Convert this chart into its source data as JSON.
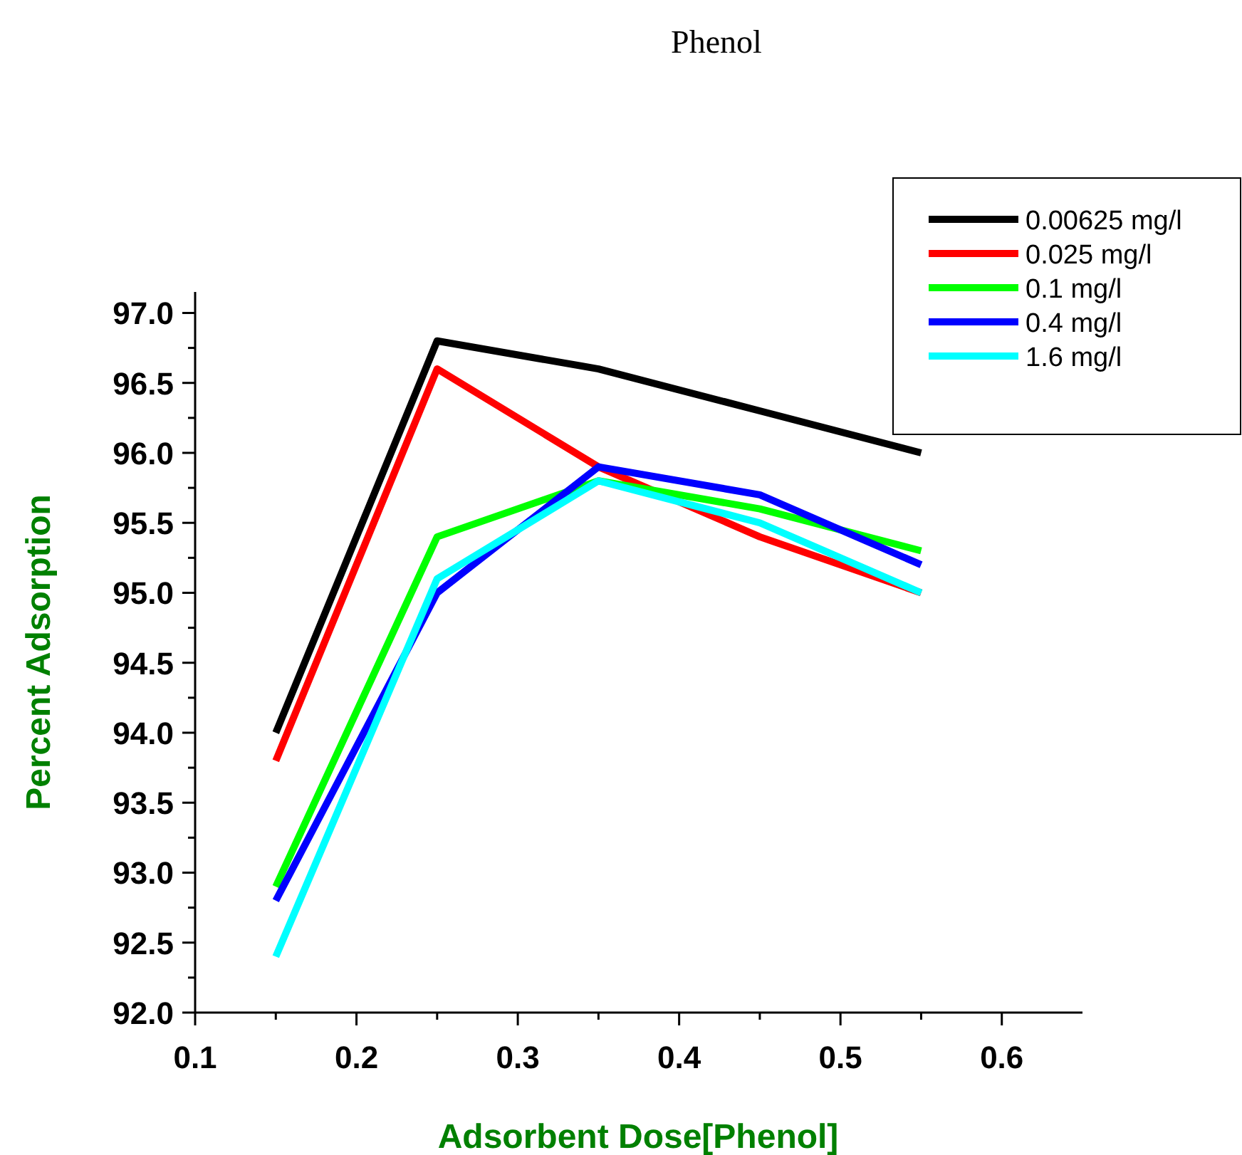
{
  "chart_data": {
    "type": "line",
    "title": "Phenol",
    "xlabel": "Adsorbent Dose[Phenol]",
    "ylabel": "Percent Adsorption",
    "x": [
      0.15,
      0.25,
      0.35,
      0.45,
      0.55
    ],
    "series": [
      {
        "name": "0.00625 mg/l",
        "color": "#000000",
        "values": [
          94.0,
          96.8,
          96.6,
          96.3,
          96.0
        ]
      },
      {
        "name": "0.025 mg/l",
        "color": "#ff0000",
        "values": [
          93.8,
          96.6,
          95.9,
          95.4,
          95.0
        ]
      },
      {
        "name": "0.1 mg/l",
        "color": "#00ff00",
        "values": [
          92.9,
          95.4,
          95.8,
          95.6,
          95.3
        ]
      },
      {
        "name": "0.4 mg/l",
        "color": "#0000ff",
        "values": [
          92.8,
          95.0,
          95.9,
          95.7,
          95.2
        ]
      },
      {
        "name": "1.6 mg/l",
        "color": "#00ffff",
        "values": [
          92.4,
          95.1,
          95.8,
          95.5,
          95.0
        ]
      }
    ],
    "xlim": [
      0.1,
      0.65
    ],
    "ylim": [
      92.0,
      97.15
    ],
    "xticks": [
      {
        "value": 0.1,
        "label": "0.1"
      },
      {
        "value": 0.15,
        "label": null
      },
      {
        "value": 0.2,
        "label": "0.2"
      },
      {
        "value": 0.25,
        "label": null
      },
      {
        "value": 0.3,
        "label": "0.3"
      },
      {
        "value": 0.35,
        "label": null
      },
      {
        "value": 0.4,
        "label": "0.4"
      },
      {
        "value": 0.45,
        "label": null
      },
      {
        "value": 0.5,
        "label": "0.5"
      },
      {
        "value": 0.55,
        "label": null
      },
      {
        "value": 0.6,
        "label": "0.6"
      }
    ],
    "yticks": [
      {
        "value": 92.0,
        "label": "92.0"
      },
      {
        "value": 92.25,
        "label": null
      },
      {
        "value": 92.5,
        "label": "92.5"
      },
      {
        "value": 92.75,
        "label": null
      },
      {
        "value": 93.0,
        "label": "93.0"
      },
      {
        "value": 93.25,
        "label": null
      },
      {
        "value": 93.5,
        "label": "93.5"
      },
      {
        "value": 93.75,
        "label": null
      },
      {
        "value": 94.0,
        "label": "94.0"
      },
      {
        "value": 94.25,
        "label": null
      },
      {
        "value": 94.5,
        "label": "94.5"
      },
      {
        "value": 94.75,
        "label": null
      },
      {
        "value": 95.0,
        "label": "95.0"
      },
      {
        "value": 95.25,
        "label": null
      },
      {
        "value": 95.5,
        "label": "95.5"
      },
      {
        "value": 95.75,
        "label": null
      },
      {
        "value": 96.0,
        "label": "96.0"
      },
      {
        "value": 96.25,
        "label": null
      },
      {
        "value": 96.5,
        "label": "96.5"
      },
      {
        "value": 96.75,
        "label": null
      },
      {
        "value": 97.0,
        "label": "97.0"
      }
    ],
    "grid": false,
    "legend": "top right",
    "marker": "none",
    "line_style": "solid"
  }
}
